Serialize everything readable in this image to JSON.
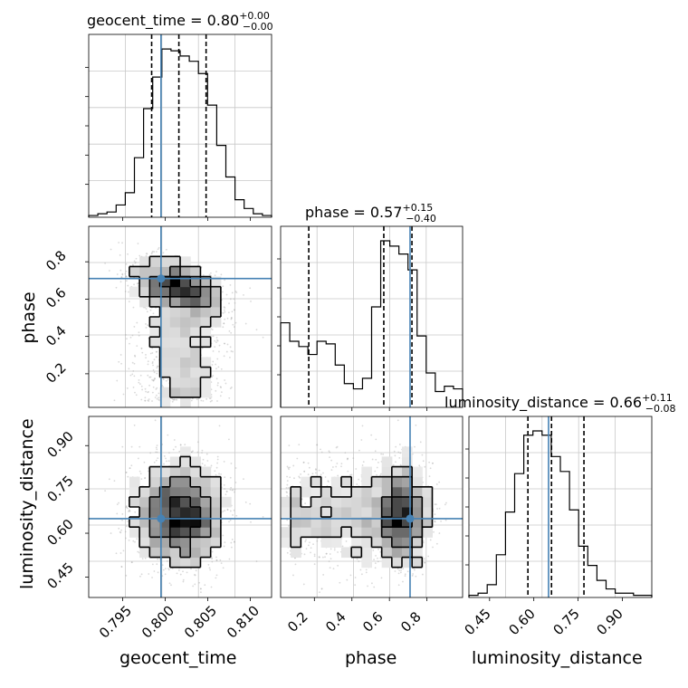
{
  "titles": {
    "geocent_time": {
      "label": "geocent_time",
      "value": "0.80",
      "plus": "+0.00",
      "minus": "−0.00"
    },
    "phase": {
      "label": "phase",
      "value": "0.57",
      "plus": "+0.15",
      "minus": "−0.40"
    },
    "luminosity_distance": {
      "label": "luminosity_distance",
      "value": "0.66",
      "plus": "+0.11",
      "minus": "−0.08"
    }
  },
  "axis_labels": {
    "x_geocent_time": "geocent_time",
    "x_phase": "phase",
    "x_luminosity_distance": "luminosity_distance",
    "y_phase": "phase",
    "y_luminosity_distance": "luminosity_distance"
  },
  "colors": {
    "truth": "#4682b4",
    "hist": "#000000",
    "grid": "#c8c8c8",
    "scatter": "#aaaaaa"
  },
  "chart_data": {
    "type": "corner",
    "parameters": [
      "geocent_time",
      "phase",
      "luminosity_distance"
    ],
    "truths": {
      "geocent_time": 0.7995,
      "phase": 0.71,
      "luminosity_distance": 0.65
    },
    "ranges": {
      "geocent_time": [
        0.791,
        0.8125
      ],
      "phase": [
        0.02,
        0.99
      ],
      "luminosity_distance": [
        0.38,
        1.0
      ]
    },
    "ticks": {
      "geocent_time": [
        "0.795",
        "0.800",
        "0.805",
        "0.810"
      ],
      "phase": [
        "0.2",
        "0.4",
        "0.6",
        "0.8"
      ],
      "luminosity_distance": [
        "0.45",
        "0.60",
        "0.75",
        "0.90"
      ]
    },
    "quantiles": {
      "geocent_time": [
        0.7984,
        0.8016,
        0.8048
      ],
      "phase": [
        0.17,
        0.57,
        0.72
      ],
      "luminosity_distance": [
        0.58,
        0.66,
        0.77
      ]
    },
    "histograms": {
      "geocent_time": [
        1,
        2,
        3,
        7,
        14,
        34,
        62,
        80,
        96,
        95,
        92,
        89,
        82,
        64,
        41,
        23,
        10,
        5,
        2,
        1
      ],
      "phase": [
        32,
        25,
        23,
        20,
        25,
        24,
        16,
        9,
        7,
        11,
        38,
        63,
        61,
        58,
        52,
        27,
        13,
        6,
        8,
        7
      ],
      "luminosity_distance": [
        1,
        2,
        6,
        20,
        40,
        58,
        76,
        78,
        76,
        66,
        59,
        41,
        24,
        15,
        8,
        4,
        2,
        2,
        1,
        1
      ]
    },
    "grid": true
  }
}
